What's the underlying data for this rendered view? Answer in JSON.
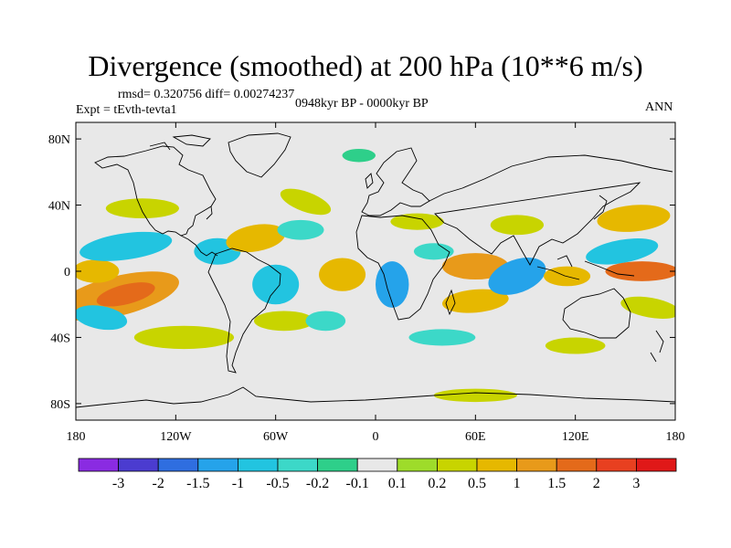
{
  "title": "Divergence (smoothed) at 200 hPa (10**6 m/s)",
  "stats": "rmsd= 0.320756 diff= 0.00274237",
  "experiment": "Expt = tEvth-tevta1",
  "period": "0948kyr BP - 0000kyr BP",
  "season": "ANN",
  "map": {
    "lon_range": [
      -180,
      180
    ],
    "lat_range": [
      -90,
      90
    ],
    "background_color": "#e8e8e8",
    "lat_ticks": [
      {
        "lat": 80,
        "label": "80N"
      },
      {
        "lat": 40,
        "label": "40N"
      },
      {
        "lat": 0,
        "label": "0"
      },
      {
        "lat": -40,
        "label": "40S"
      },
      {
        "lat": -80,
        "label": "80S"
      }
    ],
    "lon_ticks": [
      {
        "lon": -180,
        "label": "180"
      },
      {
        "lon": -120,
        "label": "120W"
      },
      {
        "lon": -60,
        "label": "60W"
      },
      {
        "lon": 0,
        "label": "0"
      },
      {
        "lon": 60,
        "label": "60E"
      },
      {
        "lon": 120,
        "label": "120E"
      },
      {
        "lon": 180,
        "label": "180"
      }
    ]
  },
  "colorbar": {
    "colors": [
      "#8a2be2",
      "#4b3cd0",
      "#2f6ee0",
      "#25a3ea",
      "#22c4e0",
      "#3cd8c8",
      "#2ecf8a",
      "#e8e8e8",
      "#9edc2a",
      "#c8d400",
      "#e6b800",
      "#e89a1a",
      "#e46a1a",
      "#e84020",
      "#e01818"
    ],
    "labels": [
      "-3",
      "-2",
      "-1.5",
      "-1",
      "-0.5",
      "-0.2",
      "-0.1",
      "0.1",
      "0.2",
      "0.5",
      "1",
      "1.5",
      "2",
      "3"
    ]
  },
  "chart_data": {
    "type": "heatmap",
    "title": "Divergence (smoothed) at 200 hPa (10**6 m/s)",
    "units": "10**6 m/s",
    "xrange": [
      -180,
      180
    ],
    "yrange": [
      -90,
      90
    ],
    "contour_levels": [
      -3,
      -2,
      -1.5,
      -1,
      -0.5,
      -0.2,
      -0.1,
      0.1,
      0.2,
      0.5,
      1,
      1.5,
      2,
      3
    ],
    "features": [
      {
        "lon": -155,
        "lat": -15,
        "value": 1.4
      },
      {
        "lon": -165,
        "lat": 0,
        "value": 0.8
      },
      {
        "lon": 160,
        "lat": 0,
        "value": 1.6
      },
      {
        "lon": 165,
        "lat": 30,
        "value": 0.6
      },
      {
        "lon": 148,
        "lat": 12,
        "value": -0.8
      },
      {
        "lon": 85,
        "lat": -3,
        "value": -1.3
      },
      {
        "lon": 10,
        "lat": -8,
        "value": -1.2
      },
      {
        "lon": 60,
        "lat": 3,
        "value": 1.2
      },
      {
        "lon": -20,
        "lat": -2,
        "value": 0.9
      },
      {
        "lon": -70,
        "lat": 20,
        "value": 0.8
      },
      {
        "lon": -95,
        "lat": 12,
        "value": -0.6
      },
      {
        "lon": -150,
        "lat": 15,
        "value": -0.5
      },
      {
        "lon": -115,
        "lat": -42,
        "value": 0.4
      },
      {
        "lon": 60,
        "lat": -18,
        "value": 0.9
      },
      {
        "lon": 40,
        "lat": -40,
        "value": -0.4
      }
    ]
  },
  "features": [
    {
      "lon": -155,
      "lat": -15,
      "rx": 38,
      "ry": 12,
      "rot": -14,
      "level": 11,
      "name": "central-pacific-positive"
    },
    {
      "lon": -150,
      "lat": -14,
      "rx": 18,
      "ry": 6,
      "rot": -14,
      "level": 12,
      "name": "central-pacific-core"
    },
    {
      "lon": -168,
      "lat": 0,
      "rx": 14,
      "ry": 7,
      "rot": 0,
      "level": 10,
      "name": "dateline-positive"
    },
    {
      "lon": -150,
      "lat": 15,
      "rx": 28,
      "ry": 8,
      "rot": -8,
      "level": 4,
      "name": "north-pacific-negative"
    },
    {
      "lon": -165,
      "lat": -28,
      "rx": 16,
      "ry": 7,
      "rot": 10,
      "level": 4,
      "name": "south-pacific-negative"
    },
    {
      "lon": -140,
      "lat": 38,
      "rx": 22,
      "ry": 6,
      "rot": 0,
      "level": 9,
      "name": "north-pacific-jet-positive"
    },
    {
      "lon": -115,
      "lat": -40,
      "rx": 30,
      "ry": 7,
      "rot": 0,
      "level": 9,
      "name": "south-pacific-positive"
    },
    {
      "lon": -95,
      "lat": 12,
      "rx": 14,
      "ry": 8,
      "rot": 0,
      "level": 4,
      "name": "central-america-negative"
    },
    {
      "lon": -72,
      "lat": 20,
      "rx": 18,
      "ry": 8,
      "rot": -10,
      "level": 10,
      "name": "caribbean-positive"
    },
    {
      "lon": -60,
      "lat": -8,
      "rx": 14,
      "ry": 12,
      "rot": 0,
      "level": 4,
      "name": "amazon-negative"
    },
    {
      "lon": -55,
      "lat": -30,
      "rx": 18,
      "ry": 6,
      "rot": 0,
      "level": 9,
      "name": "south-america-positive"
    },
    {
      "lon": -42,
      "lat": 42,
      "rx": 16,
      "ry": 6,
      "rot": 20,
      "level": 9,
      "name": "north-atlantic-positive"
    },
    {
      "lon": -45,
      "lat": 25,
      "rx": 14,
      "ry": 6,
      "rot": 0,
      "level": 5,
      "name": "subtropical-atlantic-negative"
    },
    {
      "lon": -20,
      "lat": -2,
      "rx": 14,
      "ry": 10,
      "rot": 0,
      "level": 10,
      "name": "equatorial-atlantic-positive"
    },
    {
      "lon": -30,
      "lat": -30,
      "rx": 12,
      "ry": 6,
      "rot": 0,
      "level": 5,
      "name": "south-atlantic-negative"
    },
    {
      "lon": 10,
      "lat": -8,
      "rx": 10,
      "ry": 14,
      "rot": 0,
      "level": 3,
      "name": "congo-negative"
    },
    {
      "lon": 25,
      "lat": 30,
      "rx": 16,
      "ry": 5,
      "rot": 0,
      "level": 9,
      "name": "mediterranean-positive"
    },
    {
      "lon": 35,
      "lat": 12,
      "rx": 12,
      "ry": 5,
      "rot": 0,
      "level": 5,
      "name": "sahel-negative"
    },
    {
      "lon": 60,
      "lat": 3,
      "rx": 20,
      "ry": 8,
      "rot": 0,
      "level": 11,
      "name": "arabian-sea-positive"
    },
    {
      "lon": 60,
      "lat": -18,
      "rx": 20,
      "ry": 7,
      "rot": -5,
      "level": 10,
      "name": "indian-ocean-positive"
    },
    {
      "lon": 85,
      "lat": -3,
      "rx": 18,
      "ry": 10,
      "rot": -20,
      "level": 3,
      "name": "indian-ocean-negative"
    },
    {
      "lon": 85,
      "lat": 28,
      "rx": 16,
      "ry": 6,
      "rot": 0,
      "level": 9,
      "name": "tibet-positive"
    },
    {
      "lon": 115,
      "lat": -3,
      "rx": 14,
      "ry": 6,
      "rot": 0,
      "level": 10,
      "name": "maritime-continent-positive"
    },
    {
      "lon": 148,
      "lat": 12,
      "rx": 22,
      "ry": 7,
      "rot": -10,
      "level": 4,
      "name": "west-pacific-negative"
    },
    {
      "lon": 160,
      "lat": 0,
      "rx": 22,
      "ry": 6,
      "rot": 0,
      "level": 12,
      "name": "west-pacific-core"
    },
    {
      "lon": 155,
      "lat": 32,
      "rx": 22,
      "ry": 8,
      "rot": -5,
      "level": 10,
      "name": "kuroshio-positive"
    },
    {
      "lon": 165,
      "lat": -22,
      "rx": 18,
      "ry": 6,
      "rot": 10,
      "level": 9,
      "name": "south-west-pacific-positive"
    },
    {
      "lon": 40,
      "lat": -40,
      "rx": 20,
      "ry": 5,
      "rot": 0,
      "level": 5,
      "name": "southern-ocean-negative"
    },
    {
      "lon": 120,
      "lat": -45,
      "rx": 18,
      "ry": 5,
      "rot": 0,
      "level": 9,
      "name": "southern-ocean-positive"
    },
    {
      "lon": 60,
      "lat": -75,
      "rx": 25,
      "ry": 4,
      "rot": 0,
      "level": 9,
      "name": "antarctic-positive"
    },
    {
      "lon": -10,
      "lat": 70,
      "rx": 10,
      "ry": 4,
      "rot": 0,
      "level": 6,
      "name": "norwegian-sea-negative"
    }
  ]
}
